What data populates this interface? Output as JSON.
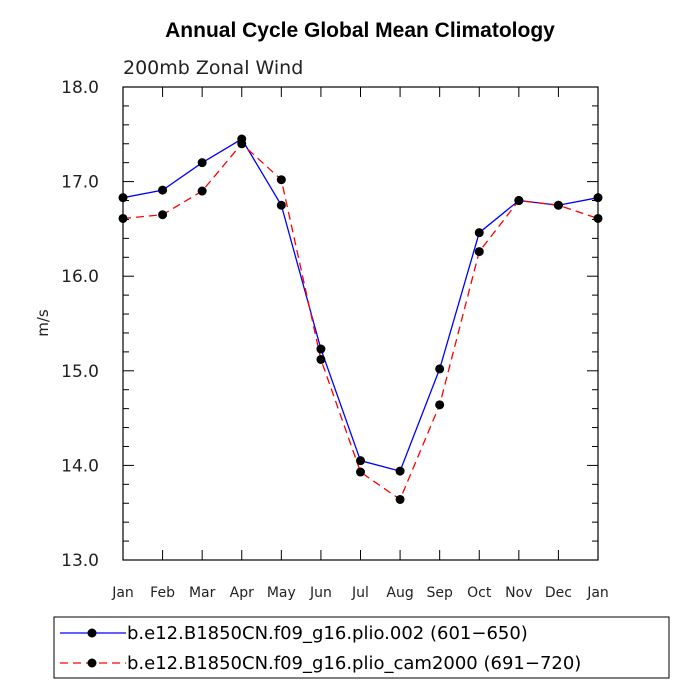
{
  "chart_data": {
    "type": "line",
    "title": "Annual Cycle Global Mean Climatology",
    "subtitle": "200mb Zonal Wind",
    "xlabel": "",
    "ylabel": "m/s",
    "categories": [
      "Jan",
      "Feb",
      "Mar",
      "Apr",
      "May",
      "Jun",
      "Jul",
      "Aug",
      "Sep",
      "Oct",
      "Nov",
      "Dec",
      "Jan"
    ],
    "y_ticks": [
      "13.0",
      "14.0",
      "15.0",
      "16.0",
      "17.0",
      "18.0"
    ],
    "ylim": [
      13.0,
      18.0
    ],
    "grid": false,
    "legend_position": "bottom",
    "series": [
      {
        "name": "b.e12.B1850CN.f09_g16.plio.002 (601−650)",
        "color": "#0000ff",
        "line_style": "solid",
        "values": [
          16.83,
          16.91,
          17.2,
          17.45,
          16.75,
          15.23,
          14.05,
          13.94,
          15.02,
          16.46,
          16.8,
          16.75,
          16.83
        ]
      },
      {
        "name": "b.e12.B1850CN.f09_g16.plio_cam2000 (691−720)",
        "color": "#ff0000",
        "line_style": "dashed",
        "values": [
          16.61,
          16.65,
          16.9,
          17.4,
          17.02,
          15.12,
          13.93,
          13.64,
          14.64,
          16.26,
          16.8,
          16.75,
          16.61
        ]
      }
    ]
  }
}
